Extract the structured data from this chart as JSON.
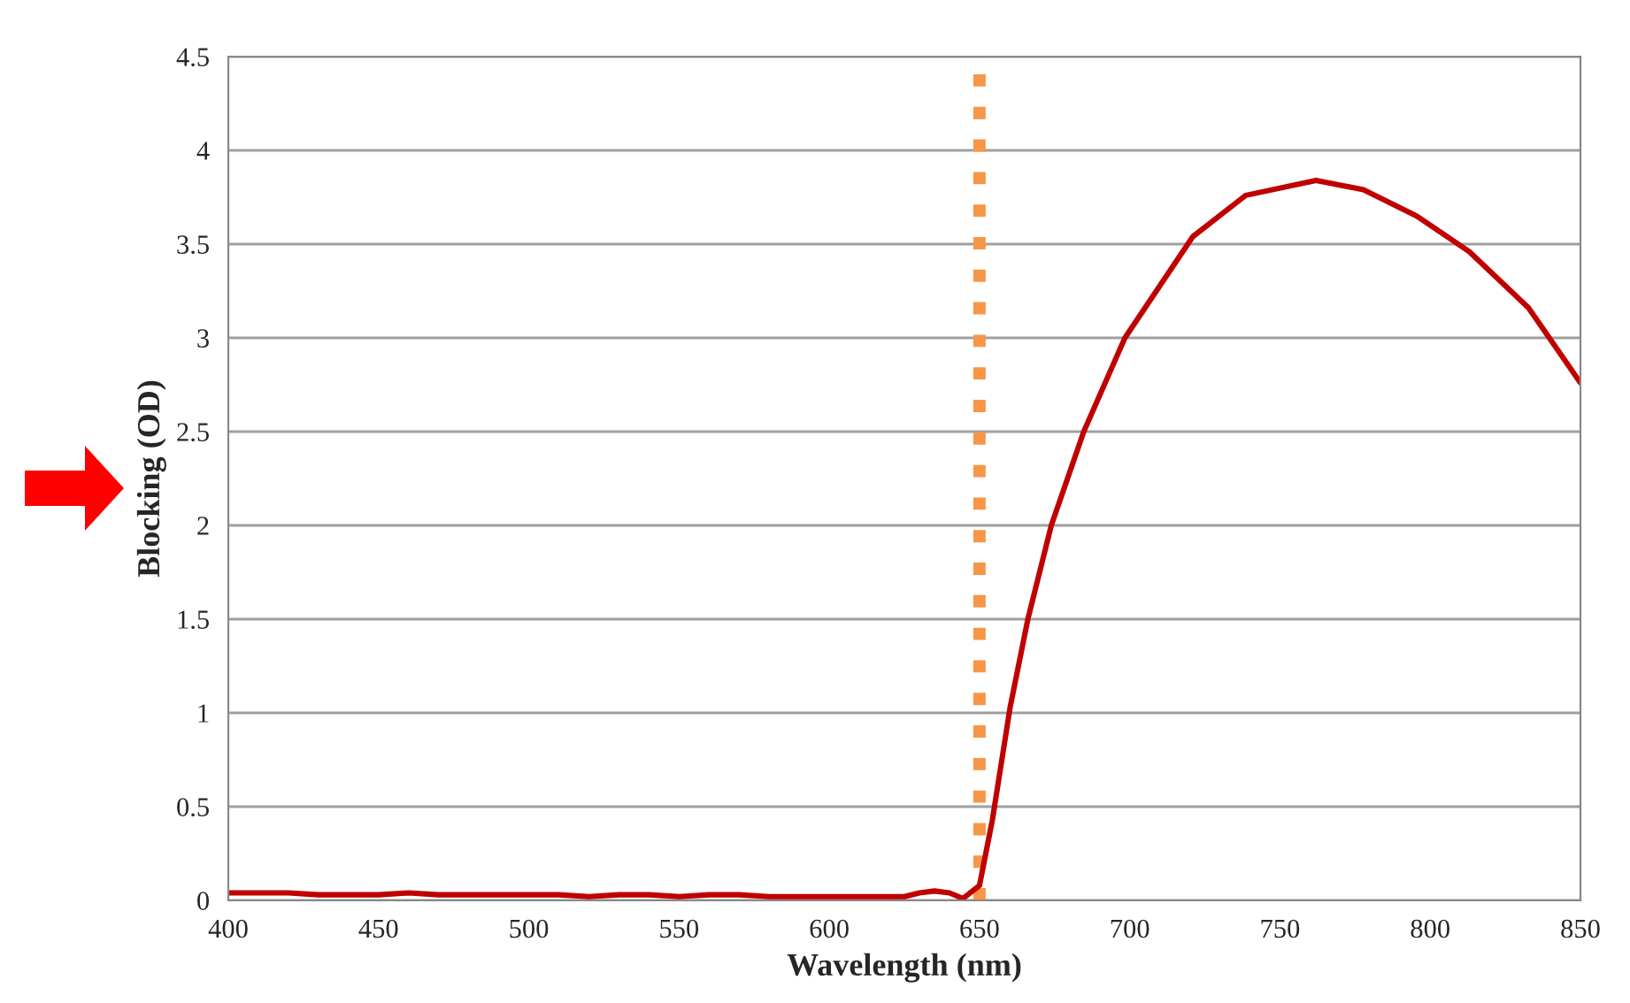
{
  "chart_data": {
    "type": "line",
    "xlabel": "Wavelength (nm)",
    "ylabel": "Blocking (OD)",
    "x": [
      400,
      410,
      420,
      430,
      440,
      450,
      460,
      470,
      480,
      490,
      500,
      510,
      520,
      530,
      540,
      550,
      560,
      570,
      580,
      590,
      600,
      610,
      620,
      625,
      630,
      635,
      640,
      644.5,
      650,
      654.3,
      660.2,
      666.1,
      673.9,
      684.7,
      698.4,
      721,
      738.6,
      762,
      777.8,
      795.5,
      813,
      832.7,
      850
    ],
    "series": [
      {
        "color": "#c00000",
        "values": [
          0.04,
          0.04,
          0.04,
          0.03,
          0.03,
          0.03,
          0.04,
          0.03,
          0.03,
          0.03,
          0.03,
          0.03,
          0.02,
          0.03,
          0.03,
          0.02,
          0.03,
          0.03,
          0.02,
          0.02,
          0.02,
          0.02,
          0.02,
          0.02,
          0.04,
          0.05,
          0.04,
          0.01,
          0.08,
          0.43,
          1.03,
          1.5,
          2.0,
          2.5,
          3.0,
          3.54,
          3.76,
          3.84,
          3.79,
          3.65,
          3.46,
          3.16,
          2.76
        ]
      }
    ],
    "xlim": [
      400,
      850
    ],
    "xticks": [
      400,
      450,
      500,
      550,
      600,
      650,
      700,
      750,
      800,
      850
    ],
    "ylim": [
      0,
      4.5
    ],
    "yticks": [
      0,
      0.5,
      1,
      1.5,
      2,
      2.5,
      3,
      3.5,
      4,
      4.5
    ],
    "grid": "y",
    "marker": "none",
    "line_style": "solid",
    "ref_lines": [
      {
        "axis": "x",
        "value": 650,
        "label": null,
        "color": "#f79646",
        "line_style": "dotted"
      }
    ]
  }
}
